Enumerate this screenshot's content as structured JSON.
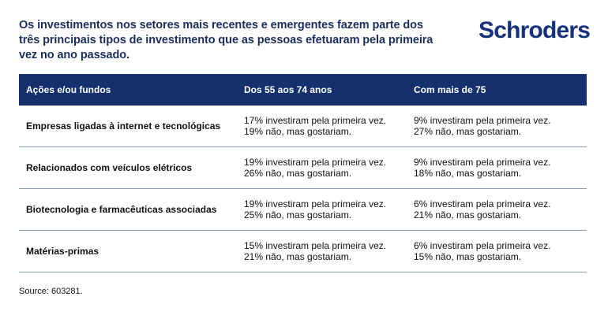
{
  "title": "Os investimentos nos setores mais recentes e emergentes fazem parte dos três principais tipos de investimento que as pessoas efetuaram pela primeira vez no ano passado.",
  "logo": "Schroders",
  "table": {
    "headers": [
      "Ações e/ou fundos",
      "Dos 55 aos 74 anos",
      "Com mais de 75"
    ],
    "rows": [
      {
        "label": "Empresas ligadas à internet e tecnológicas",
        "a1": "17% investiram pela primeira vez.",
        "a2": "19% não, mas gostariam.",
        "b1": "9% investiram pela primeira vez.",
        "b2": "27% não, mas gostariam."
      },
      {
        "label": "Relacionados com veículos elétricos",
        "a1": "19% investiram pela primeira vez.",
        "a2": "26% não, mas gostariam.",
        "b1": "9% investiram pela primeira vez.",
        "b2": "18% não, mas gostariam."
      },
      {
        "label": "Biotecnologia e farmacêuticas associadas",
        "a1": "19% investiram pela primeira vez.",
        "a2": "25% não, mas gostariam.",
        "b1": "6% investiram pela primeira vez.",
        "b2": "21% não, mas gostariam."
      },
      {
        "label": "Matérias-primas",
        "a1": "15% investiram pela primeira vez.",
        "a2": "21% não, mas gostariam.",
        "b1": "6% investiram pela primeira vez.",
        "b2": "15% não, mas gostariam."
      }
    ]
  },
  "source": "Source: 603281."
}
